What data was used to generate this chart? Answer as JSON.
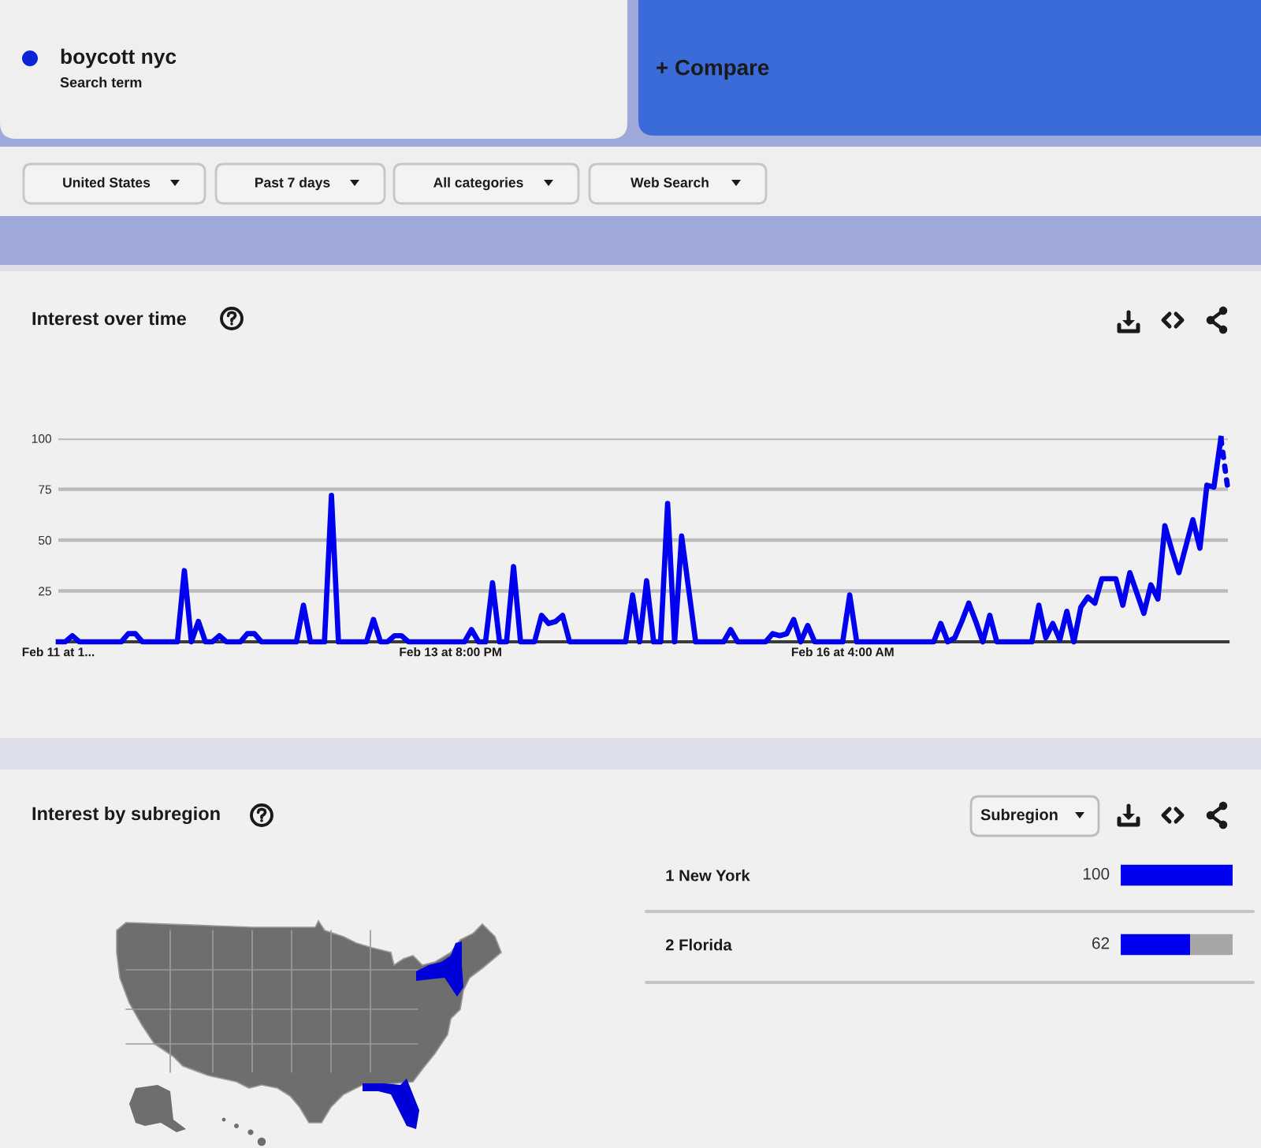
{
  "chart_data": [
    {
      "type": "other",
      "title": "boycott nyc",
      "subtitle": "Search term",
      "annotations": [
        "+ Compare",
        "United States",
        "Past 7 days",
        "All categories",
        "Web Search"
      ]
    },
    {
      "type": "line",
      "title": "Interest over time",
      "ylim": [
        0,
        100
      ],
      "yticks": [
        25,
        50,
        75,
        100
      ],
      "grid": "y",
      "marker": "none",
      "categories": [
        "Feb 11 at 1...",
        null,
        null,
        null,
        null,
        null,
        null,
        null,
        null,
        null,
        null,
        null,
        null,
        null,
        null,
        null,
        null,
        null,
        null,
        null,
        null,
        null,
        null,
        null,
        null,
        null,
        null,
        null,
        null,
        null,
        null,
        null,
        null,
        null,
        null,
        null,
        null,
        null,
        null,
        null,
        null,
        null,
        null,
        null,
        null,
        null,
        null,
        null,
        null,
        null,
        null,
        null,
        null,
        null,
        null,
        null,
        "Feb 13 at 8:00 PM",
        null,
        null,
        null,
        null,
        null,
        null,
        null,
        null,
        null,
        null,
        null,
        null,
        null,
        null,
        null,
        null,
        null,
        null,
        null,
        null,
        null,
        null,
        null,
        null,
        null,
        null,
        null,
        null,
        null,
        null,
        null,
        null,
        null,
        null,
        null,
        null,
        null,
        null,
        null,
        null,
        null,
        null,
        null,
        null,
        null,
        null,
        null,
        null,
        null,
        null,
        null,
        null,
        null,
        null,
        null,
        "Feb 16 at 4:00 AM",
        null,
        null,
        null,
        null,
        null,
        null,
        null,
        null,
        null,
        null,
        null,
        null,
        null,
        null,
        null,
        null,
        null,
        null,
        null,
        null,
        null,
        null,
        null,
        null,
        null,
        null,
        null,
        null,
        null,
        null,
        null,
        null,
        null,
        null,
        null,
        null,
        null,
        null,
        null,
        null,
        null,
        null,
        null,
        null,
        null,
        null,
        null,
        null,
        null,
        null,
        null,
        null,
        null,
        null,
        null
      ],
      "series": [
        {
          "color": "#0000f0",
          "values": [
            0,
            0,
            3,
            0,
            0,
            0,
            0,
            0,
            0,
            0,
            4,
            4,
            0,
            0,
            0,
            0,
            0,
            0,
            35,
            0,
            10,
            0,
            0,
            3,
            0,
            0,
            0,
            4,
            4,
            0,
            0,
            0,
            0,
            0,
            0,
            18,
            0,
            0,
            0,
            72,
            0,
            0,
            0,
            0,
            0,
            11,
            0,
            0,
            3,
            3,
            0,
            0,
            0,
            0,
            0,
            0,
            0,
            0,
            0,
            6,
            0,
            0,
            29,
            0,
            0,
            37,
            0,
            0,
            0,
            13,
            9,
            10,
            13,
            0,
            0,
            0,
            0,
            0,
            0,
            0,
            0,
            0,
            23,
            0,
            30,
            0,
            0,
            68,
            0,
            52,
            26,
            0,
            0,
            0,
            0,
            0,
            6,
            0,
            0,
            0,
            0,
            0,
            4,
            3,
            4,
            11,
            0,
            8,
            0,
            0,
            0,
            0,
            0,
            23,
            0,
            0,
            0,
            0,
            0,
            0,
            0,
            0,
            0,
            0,
            0,
            0,
            9,
            0,
            2,
            10,
            19,
            10,
            0,
            13,
            0,
            0,
            0,
            0,
            0,
            0,
            18,
            2,
            9,
            1,
            15,
            0,
            17,
            22,
            19,
            31,
            31,
            31,
            18,
            34,
            24,
            14,
            28,
            21,
            57,
            45,
            34,
            47,
            60,
            46,
            77,
            76,
            100,
            null
          ]
        },
        {
          "color": "#0000f0",
          "line_style": "dotted",
          "values": [
            null,
            null,
            null,
            null,
            null,
            null,
            null,
            null,
            null,
            null,
            null,
            null,
            null,
            null,
            null,
            null,
            null,
            null,
            null,
            null,
            null,
            null,
            null,
            null,
            null,
            null,
            null,
            null,
            null,
            null,
            null,
            null,
            null,
            null,
            null,
            null,
            null,
            null,
            null,
            null,
            null,
            null,
            null,
            null,
            null,
            null,
            null,
            null,
            null,
            null,
            null,
            null,
            null,
            null,
            null,
            null,
            null,
            null,
            null,
            null,
            null,
            null,
            null,
            null,
            null,
            null,
            null,
            null,
            null,
            null,
            null,
            null,
            null,
            null,
            null,
            null,
            null,
            null,
            null,
            null,
            null,
            null,
            null,
            null,
            null,
            null,
            null,
            null,
            null,
            null,
            null,
            null,
            null,
            null,
            null,
            null,
            null,
            null,
            null,
            null,
            null,
            null,
            null,
            null,
            null,
            null,
            null,
            null,
            null,
            null,
            null,
            null,
            null,
            null,
            null,
            null,
            null,
            null,
            null,
            null,
            null,
            null,
            null,
            null,
            null,
            null,
            null,
            null,
            null,
            null,
            null,
            null,
            null,
            null,
            null,
            null,
            null,
            null,
            null,
            null,
            null,
            null,
            null,
            null,
            null,
            null,
            null,
            null,
            null,
            null,
            null,
            null,
            null,
            null,
            null,
            null,
            null,
            null,
            null,
            null,
            null,
            null,
            null,
            null,
            null,
            null,
            100,
            75
          ]
        }
      ]
    },
    {
      "type": "other",
      "title": "Interest by subregion",
      "annotations": [
        "Subregion"
      ]
    },
    {
      "type": "bar",
      "orientation": "horizontal",
      "stacked": true,
      "categories": [
        "1 New York",
        "2 Florida"
      ],
      "xlim": [
        0,
        100
      ],
      "tick_labels": "y",
      "series": [
        {
          "color": "#0000f0",
          "values": [
            100,
            62
          ],
          "value_labels": [
            "100",
            "62"
          ]
        },
        {
          "color": "#a6a6a6",
          "values": [
            null,
            38
          ]
        }
      ]
    }
  ]
}
